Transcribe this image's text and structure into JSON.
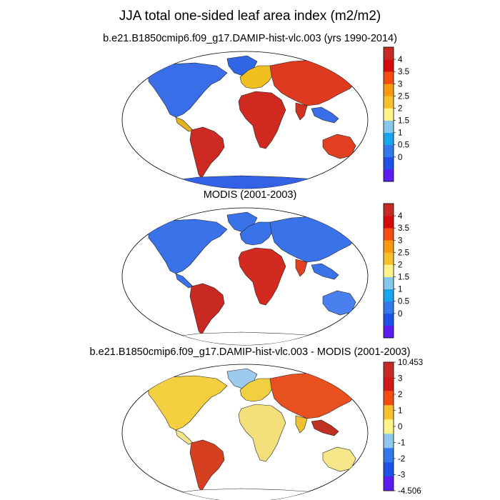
{
  "title": "JJA total one-sided leaf area index (m2/m2)",
  "panels": [
    {
      "id": "model",
      "subtitle": "b.e21.B1850cmip6.f09_g17.DAMIP-hist-vlc.003 (yrs 1990-2014)",
      "colorbar": {
        "labels": [
          "4",
          "3.5",
          "3",
          "2.5",
          "2",
          "1.5",
          "1",
          "0.5",
          "0"
        ],
        "colors": [
          "#5a1ef0",
          "#2050e8",
          "#3479ec",
          "#1aa4ec",
          "#88c8ec",
          "#fff38a",
          "#f8c02c",
          "#f89a10",
          "#f44c10",
          "#d60a0a",
          "#c82a26"
        ]
      }
    },
    {
      "id": "obs",
      "subtitle": "MODIS (2001-2003)",
      "colorbar": {
        "labels": [
          "4",
          "3.5",
          "3",
          "2.5",
          "2",
          "1.5",
          "1",
          "0.5",
          "0"
        ],
        "colors": [
          "#5a1ef0",
          "#2050e8",
          "#3479ec",
          "#1aa4ec",
          "#88c8ec",
          "#fff38a",
          "#f8c02c",
          "#f89a10",
          "#f44c10",
          "#d60a0a",
          "#c82a26"
        ]
      }
    },
    {
      "id": "diff",
      "subtitle": "b.e21.B1850cmip6.f09_g17.DAMIP-hist-vlc.003 - MODIS (2001-2003)",
      "colorbar": {
        "labels": [
          "10.453",
          "3",
          "2",
          "1",
          "0",
          "-1",
          "-2",
          "-3",
          "-4.506"
        ],
        "colors": [
          "#5a1ef0",
          "#2050e8",
          "#3479ec",
          "#8ec8ee",
          "#fff38a",
          "#f8c02c",
          "#f44c10",
          "#d21a1a",
          "#c82a26"
        ]
      }
    }
  ]
}
